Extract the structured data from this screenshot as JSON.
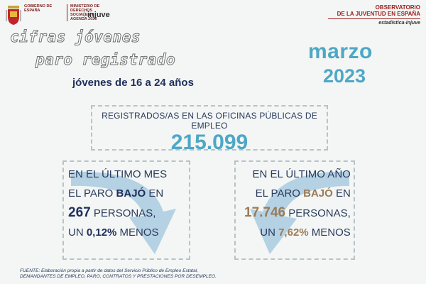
{
  "header": {
    "gov_line1": "GOBIERNO DE ESPAÑA",
    "gov_line2": "MINISTERIO DE DERECHOS SOCIALES Y AGENDA 2030",
    "injuve": "injuve",
    "observatory_line1": "OBSERVATORIO",
    "observatory_line2": "DE LA JUVENTUD EN ESPAÑA",
    "observatory_line3": "estadística-injuve"
  },
  "title": {
    "line1": "cifras jóvenes",
    "line2": "paro registrado",
    "subtitle": "jóvenes de 16 a 24 años"
  },
  "period": {
    "month": "marzo",
    "year": "2023"
  },
  "total": {
    "label": "REGISTRADOS/AS EN LAS OFICINAS PÚBLICAS DE EMPLEO",
    "value": "215.099"
  },
  "monthly": {
    "l1": "EN EL ÚLTIMO MES",
    "l2a": "EL PARO ",
    "l2b": "BAJÓ",
    "l2c": " EN",
    "l3a": "267",
    "l3b": " PERSONAS,",
    "l4a": "UN ",
    "l4b": "0,12%",
    "l4c": " MENOS"
  },
  "yearly": {
    "l1": "EN EL ÚLTIMO AÑO",
    "l2a": "EL PARO ",
    "l2b": "BAJÓ",
    "l2c": " EN",
    "l3a": "17.746",
    "l3b": " PERSONAS,",
    "l4a": "UN ",
    "l4b": "7,62%",
    "l4c": " MENOS"
  },
  "source": {
    "line1": "FUENTE: Elaboración propia a partir de datos del Servicio Público de Empleo Estatal,",
    "line2": "DEMANDANTES DE EMPLEO, PARO, CONTRATOS Y PRESTACIONES POR DESEMPLEO."
  },
  "colors": {
    "accent": "#4ea7c6",
    "navy": "#1f2f5c",
    "brown": "#9b7a55",
    "arrow": "#a9cbe0"
  }
}
